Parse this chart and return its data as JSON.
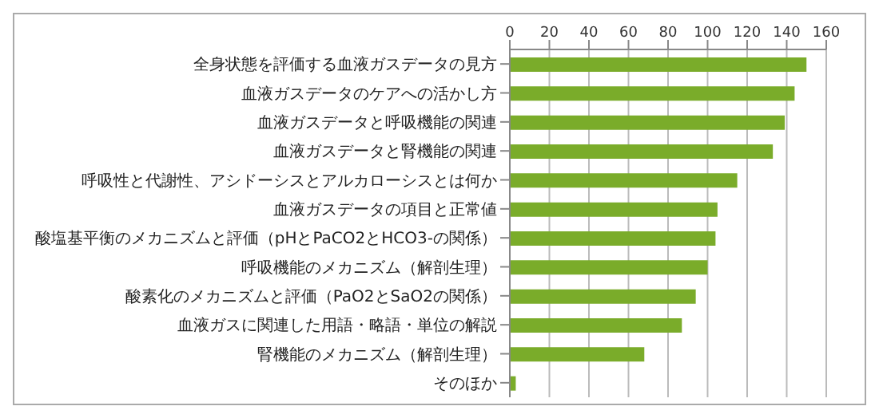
{
  "chart_data": {
    "type": "bar",
    "orientation": "horizontal",
    "categories": [
      "全身状態を評価する血液ガスデータの見方",
      "血液ガスデータのケアへの活かし方",
      "血液ガスデータと呼吸機能の関連",
      "血液ガスデータと腎機能の関連",
      "呼吸性と代謝性、アシドーシスとアルカローシスとは何か",
      "血液ガスデータの項目と正常値",
      "酸塩基平衡のメカニズムと評価（pHとPaCO2とHCO3-の関係）",
      "呼吸機能のメカニズム（解剖生理）",
      "酸素化のメカニズムと評価（PaO2とSaO2の関係）",
      "血液ガスに関連した用語・略語・単位の解説",
      "腎機能のメカニズム（解剖生理）",
      "そのほか"
    ],
    "values": [
      150,
      144,
      139,
      133,
      115,
      105,
      104,
      100,
      94,
      87,
      68,
      3
    ],
    "color": "#7aac2a",
    "xlim": [
      0,
      160
    ],
    "xticks": [
      0,
      20,
      40,
      60,
      80,
      100,
      120,
      140,
      160
    ],
    "grid": "x"
  }
}
